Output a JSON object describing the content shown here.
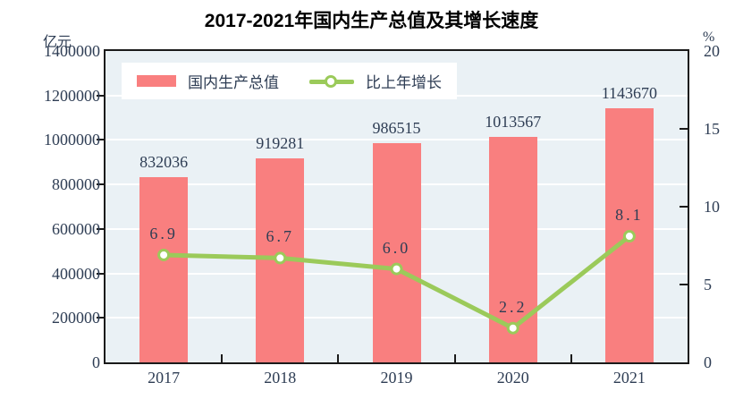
{
  "chart_data": {
    "type": "bar+line",
    "title": "2017-2021年国内生产总值及其增长速度",
    "categories": [
      "2017",
      "2018",
      "2019",
      "2020",
      "2021"
    ],
    "series": [
      {
        "name": "国内生产总值",
        "type": "bar",
        "unit": "亿元",
        "color": "#f97f7f",
        "values": [
          832036,
          919281,
          986515,
          1013567,
          1143670
        ],
        "labels": [
          "832036",
          "919281",
          "986515",
          "1013567",
          "1143670"
        ]
      },
      {
        "name": "比上年增长",
        "type": "line",
        "unit": "%",
        "color": "#9bca5a",
        "marker_fill": "#ffffff",
        "values": [
          6.9,
          6.7,
          6.0,
          2.2,
          8.1
        ],
        "labels": [
          "6.9",
          "6.7",
          "6.0",
          "2.2",
          "8.1"
        ]
      }
    ],
    "axes": {
      "left": {
        "unit": "亿元",
        "min": 0,
        "max": 1400000,
        "step": 200000,
        "ticks": [
          "1400000",
          "1200000",
          "1000000",
          "800000",
          "600000",
          "400000",
          "200000",
          "0"
        ]
      },
      "right": {
        "unit": "%",
        "min": 0,
        "max": 20,
        "step": 5,
        "ticks": [
          "20",
          "15",
          "10",
          "5",
          "0"
        ]
      }
    },
    "legend": {
      "position": "inside-top-left",
      "entries": [
        "国内生产总值",
        "比上年增长"
      ]
    },
    "grid": {
      "horizontal": true,
      "color": "#ffffff"
    },
    "colors": {
      "plot_background": "#eaf1f5",
      "frame": "#1a1a1a",
      "text": "#2e3d54",
      "title": "#000000"
    }
  }
}
